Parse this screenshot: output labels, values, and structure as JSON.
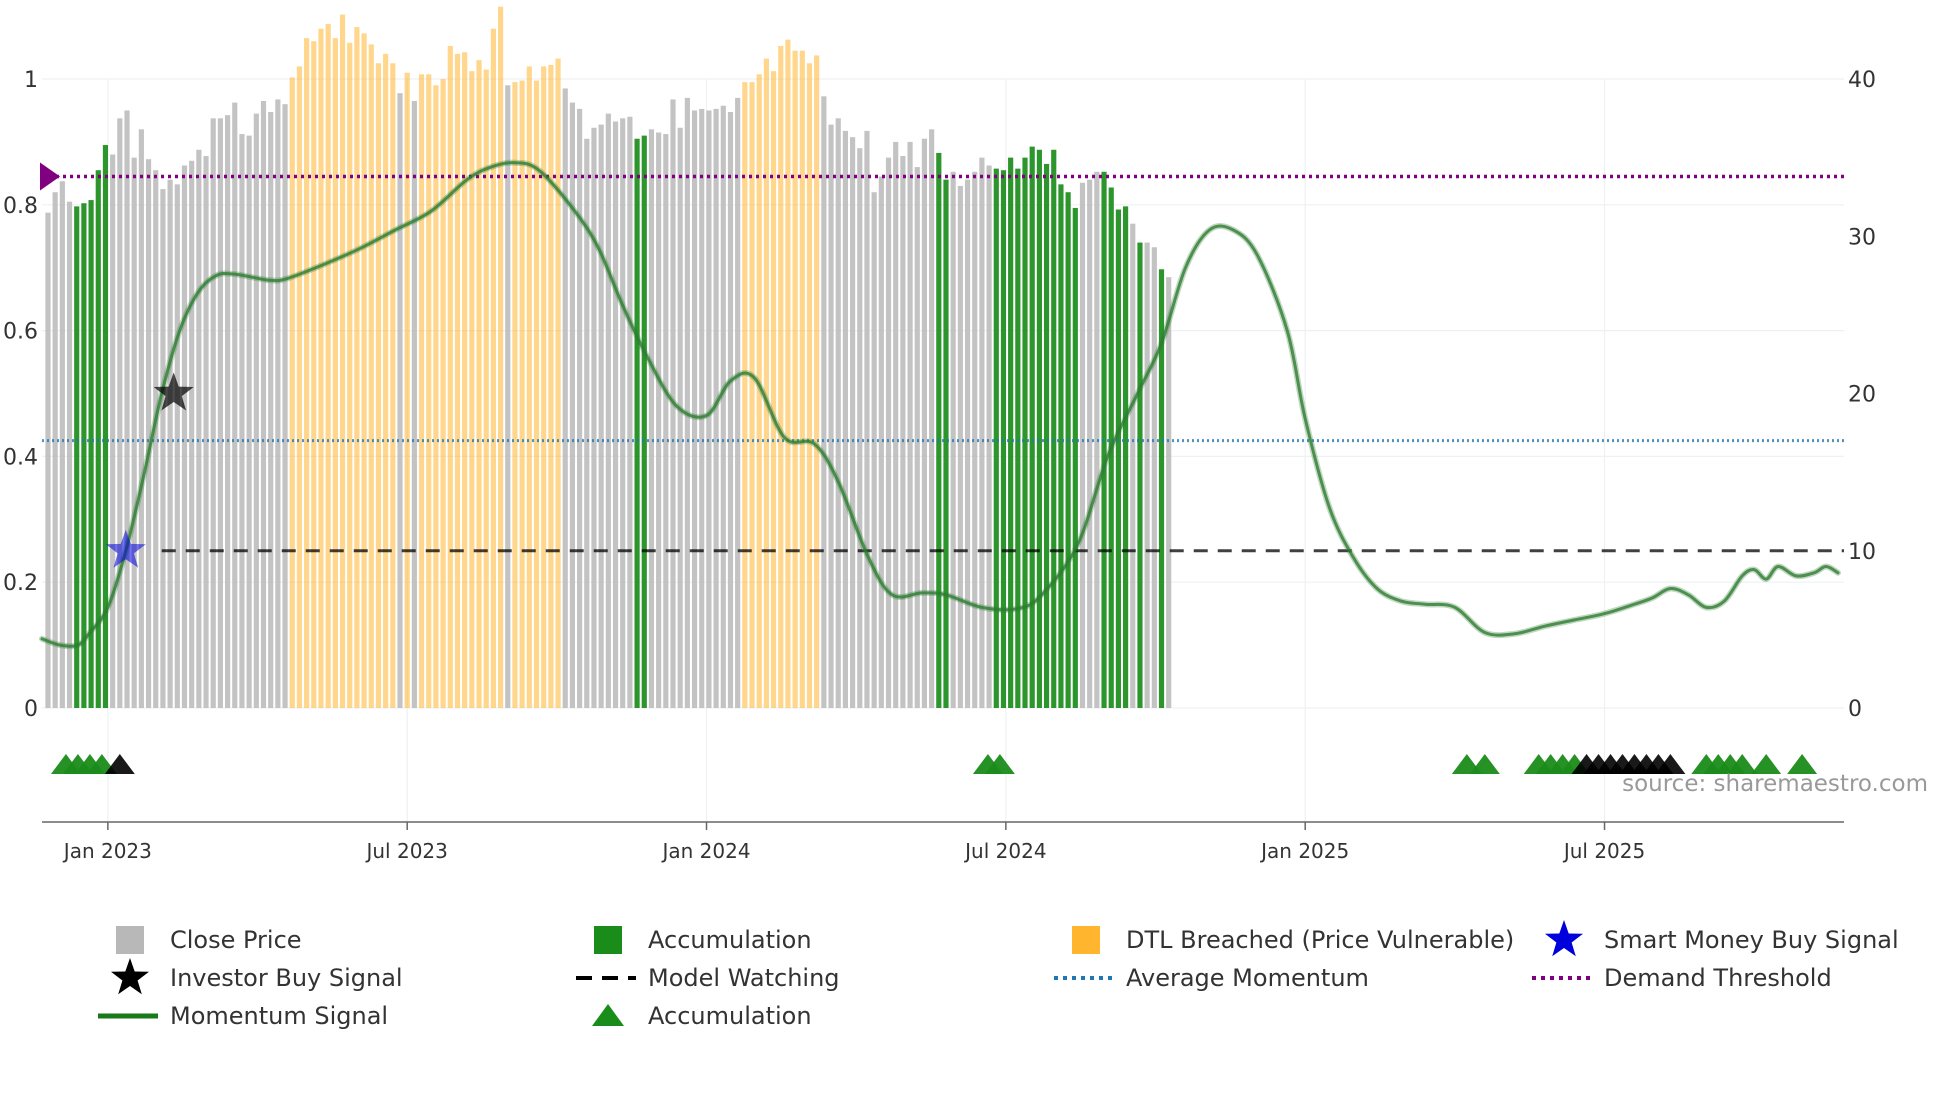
{
  "chart_data": {
    "type": "bar+line",
    "title": "",
    "xlabel": "",
    "ylabel_left": "",
    "ylabel_right": "",
    "ylim_left": [
      0,
      1
    ],
    "ylim_right": [
      0,
      40
    ],
    "yticks_left": [
      "0",
      "0.2",
      "0.4",
      "0.6",
      "0.8",
      "1"
    ],
    "yticks_left_values": [
      0,
      0.2,
      0.4,
      0.6,
      0.8,
      1
    ],
    "yticks_right": [
      "0",
      "10",
      "20",
      "30",
      "40"
    ],
    "yticks_right_values": [
      0,
      10,
      20,
      30,
      40
    ],
    "x_range": [
      2022.89,
      2025.9
    ],
    "xticks": [
      {
        "label": "Jan 2023",
        "t": 2023.0
      },
      {
        "label": "Jul 2023",
        "t": 2023.5
      },
      {
        "label": "Jan 2024",
        "t": 2024.0
      },
      {
        "label": "Jul 2024",
        "t": 2024.5
      },
      {
        "label": "Jan 2025",
        "t": 2025.0
      },
      {
        "label": "Jul 2025",
        "t": 2025.5
      }
    ],
    "colors": {
      "close_price": "#b8b8b8",
      "accumulation": "#1a8c1a",
      "dtl_breached": "#ffb52e",
      "momentum": "#2e7d32",
      "investor_buy": "#000000",
      "smart_money": "#0000dd",
      "average_momentum": "#1f77b4",
      "demand_threshold": "#800080",
      "model_watching": "#000000"
    },
    "bar_start": 2022.9,
    "bar_step": 0.012,
    "close_price_bars": [
      {
        "v": 31.5,
        "s": "g"
      },
      {
        "v": 32.8,
        "s": "g"
      },
      {
        "v": 33.5,
        "s": "g"
      },
      {
        "v": 32.2,
        "s": "g"
      },
      {
        "v": 31.9,
        "s": "a"
      },
      {
        "v": 32.1,
        "s": "a"
      },
      {
        "v": 32.3,
        "s": "a"
      },
      {
        "v": 34.2,
        "s": "a"
      },
      {
        "v": 35.8,
        "s": "a"
      },
      {
        "v": 35.2,
        "s": "g"
      },
      {
        "v": 37.5,
        "s": "g"
      },
      {
        "v": 38.0,
        "s": "g"
      },
      {
        "v": 35.0,
        "s": "g"
      },
      {
        "v": 36.8,
        "s": "g"
      },
      {
        "v": 34.9,
        "s": "g"
      },
      {
        "v": 34.2,
        "s": "g"
      },
      {
        "v": 33.0,
        "s": "g"
      },
      {
        "v": 33.6,
        "s": "g"
      },
      {
        "v": 33.3,
        "s": "g"
      },
      {
        "v": 34.5,
        "s": "g"
      },
      {
        "v": 34.8,
        "s": "g"
      },
      {
        "v": 35.5,
        "s": "g"
      },
      {
        "v": 35.1,
        "s": "g"
      },
      {
        "v": 37.5,
        "s": "g"
      },
      {
        "v": 37.5,
        "s": "g"
      },
      {
        "v": 37.7,
        "s": "g"
      },
      {
        "v": 38.5,
        "s": "g"
      },
      {
        "v": 36.5,
        "s": "g"
      },
      {
        "v": 36.4,
        "s": "g"
      },
      {
        "v": 37.8,
        "s": "g"
      },
      {
        "v": 38.6,
        "s": "g"
      },
      {
        "v": 37.9,
        "s": "g"
      },
      {
        "v": 38.7,
        "s": "g"
      },
      {
        "v": 38.4,
        "s": "g"
      },
      {
        "v": 40.1,
        "s": "o"
      },
      {
        "v": 40.8,
        "s": "o"
      },
      {
        "v": 42.6,
        "s": "o"
      },
      {
        "v": 42.4,
        "s": "o"
      },
      {
        "v": 43.2,
        "s": "o"
      },
      {
        "v": 43.5,
        "s": "o"
      },
      {
        "v": 42.6,
        "s": "o"
      },
      {
        "v": 44.1,
        "s": "o"
      },
      {
        "v": 42.3,
        "s": "o"
      },
      {
        "v": 43.3,
        "s": "o"
      },
      {
        "v": 42.9,
        "s": "o"
      },
      {
        "v": 42.2,
        "s": "o"
      },
      {
        "v": 41.0,
        "s": "o"
      },
      {
        "v": 41.6,
        "s": "o"
      },
      {
        "v": 41.0,
        "s": "o"
      },
      {
        "v": 39.1,
        "s": "g"
      },
      {
        "v": 40.4,
        "s": "o"
      },
      {
        "v": 38.6,
        "s": "g"
      },
      {
        "v": 40.3,
        "s": "o"
      },
      {
        "v": 40.3,
        "s": "o"
      },
      {
        "v": 39.6,
        "s": "o"
      },
      {
        "v": 40.0,
        "s": "o"
      },
      {
        "v": 42.1,
        "s": "o"
      },
      {
        "v": 41.6,
        "s": "o"
      },
      {
        "v": 41.7,
        "s": "o"
      },
      {
        "v": 40.5,
        "s": "o"
      },
      {
        "v": 41.2,
        "s": "o"
      },
      {
        "v": 40.6,
        "s": "o"
      },
      {
        "v": 43.2,
        "s": "o"
      },
      {
        "v": 44.6,
        "s": "o"
      },
      {
        "v": 39.6,
        "s": "g"
      },
      {
        "v": 39.8,
        "s": "o"
      },
      {
        "v": 39.9,
        "s": "o"
      },
      {
        "v": 40.8,
        "s": "o"
      },
      {
        "v": 39.9,
        "s": "o"
      },
      {
        "v": 40.8,
        "s": "o"
      },
      {
        "v": 40.9,
        "s": "o"
      },
      {
        "v": 41.3,
        "s": "o"
      },
      {
        "v": 39.4,
        "s": "g"
      },
      {
        "v": 38.5,
        "s": "g"
      },
      {
        "v": 38.1,
        "s": "g"
      },
      {
        "v": 36.2,
        "s": "g"
      },
      {
        "v": 36.9,
        "s": "g"
      },
      {
        "v": 37.1,
        "s": "g"
      },
      {
        "v": 37.8,
        "s": "g"
      },
      {
        "v": 37.3,
        "s": "g"
      },
      {
        "v": 37.5,
        "s": "g"
      },
      {
        "v": 37.6,
        "s": "g"
      },
      {
        "v": 36.2,
        "s": "a"
      },
      {
        "v": 36.4,
        "s": "a"
      },
      {
        "v": 36.8,
        "s": "g"
      },
      {
        "v": 36.6,
        "s": "g"
      },
      {
        "v": 36.5,
        "s": "g"
      },
      {
        "v": 38.7,
        "s": "g"
      },
      {
        "v": 36.9,
        "s": "g"
      },
      {
        "v": 38.8,
        "s": "g"
      },
      {
        "v": 38.0,
        "s": "g"
      },
      {
        "v": 38.1,
        "s": "g"
      },
      {
        "v": 38.0,
        "s": "g"
      },
      {
        "v": 38.1,
        "s": "g"
      },
      {
        "v": 38.3,
        "s": "g"
      },
      {
        "v": 37.9,
        "s": "g"
      },
      {
        "v": 38.8,
        "s": "g"
      },
      {
        "v": 39.8,
        "s": "o"
      },
      {
        "v": 39.8,
        "s": "o"
      },
      {
        "v": 40.3,
        "s": "o"
      },
      {
        "v": 41.3,
        "s": "o"
      },
      {
        "v": 40.5,
        "s": "o"
      },
      {
        "v": 42.1,
        "s": "o"
      },
      {
        "v": 42.5,
        "s": "o"
      },
      {
        "v": 41.8,
        "s": "o"
      },
      {
        "v": 41.8,
        "s": "o"
      },
      {
        "v": 41.0,
        "s": "o"
      },
      {
        "v": 41.5,
        "s": "o"
      },
      {
        "v": 38.9,
        "s": "g"
      },
      {
        "v": 37.1,
        "s": "g"
      },
      {
        "v": 37.5,
        "s": "g"
      },
      {
        "v": 36.7,
        "s": "g"
      },
      {
        "v": 36.3,
        "s": "g"
      },
      {
        "v": 35.6,
        "s": "g"
      },
      {
        "v": 36.7,
        "s": "g"
      },
      {
        "v": 32.8,
        "s": "g"
      },
      {
        "v": 33.8,
        "s": "g"
      },
      {
        "v": 35.0,
        "s": "g"
      },
      {
        "v": 36.0,
        "s": "g"
      },
      {
        "v": 35.1,
        "s": "g"
      },
      {
        "v": 36.0,
        "s": "g"
      },
      {
        "v": 34.4,
        "s": "g"
      },
      {
        "v": 36.2,
        "s": "g"
      },
      {
        "v": 36.8,
        "s": "g"
      },
      {
        "v": 35.3,
        "s": "a"
      },
      {
        "v": 33.6,
        "s": "a"
      },
      {
        "v": 34.1,
        "s": "g"
      },
      {
        "v": 33.2,
        "s": "g"
      },
      {
        "v": 33.6,
        "s": "g"
      },
      {
        "v": 34.1,
        "s": "g"
      },
      {
        "v": 35.0,
        "s": "g"
      },
      {
        "v": 34.5,
        "s": "g"
      },
      {
        "v": 34.3,
        "s": "a"
      },
      {
        "v": 34.2,
        "s": "a"
      },
      {
        "v": 35.0,
        "s": "a"
      },
      {
        "v": 34.3,
        "s": "a"
      },
      {
        "v": 35.0,
        "s": "a"
      },
      {
        "v": 35.7,
        "s": "a"
      },
      {
        "v": 35.5,
        "s": "a"
      },
      {
        "v": 34.6,
        "s": "a"
      },
      {
        "v": 35.5,
        "s": "a"
      },
      {
        "v": 33.3,
        "s": "a"
      },
      {
        "v": 32.8,
        "s": "a"
      },
      {
        "v": 31.8,
        "s": "a"
      },
      {
        "v": 33.4,
        "s": "g"
      },
      {
        "v": 33.6,
        "s": "g"
      },
      {
        "v": 34.1,
        "s": "g"
      },
      {
        "v": 34.1,
        "s": "a"
      },
      {
        "v": 33.1,
        "s": "a"
      },
      {
        "v": 31.7,
        "s": "a"
      },
      {
        "v": 31.9,
        "s": "a"
      },
      {
        "v": 30.8,
        "s": "g"
      },
      {
        "v": 29.6,
        "s": "a"
      },
      {
        "v": 29.6,
        "s": "g"
      },
      {
        "v": 29.3,
        "s": "g"
      },
      {
        "v": 27.9,
        "s": "a"
      },
      {
        "v": 27.4,
        "s": "g"
      }
    ],
    "momentum_signal": [
      [
        2022.89,
        0.11
      ],
      [
        2022.92,
        0.1
      ],
      [
        2022.95,
        0.1
      ],
      [
        2022.97,
        0.12
      ],
      [
        2023.0,
        0.16
      ],
      [
        2023.03,
        0.25
      ],
      [
        2023.06,
        0.37
      ],
      [
        2023.09,
        0.5
      ],
      [
        2023.12,
        0.6
      ],
      [
        2023.15,
        0.66
      ],
      [
        2023.18,
        0.687
      ],
      [
        2023.21,
        0.69
      ],
      [
        2023.27,
        0.68
      ],
      [
        2023.3,
        0.683
      ],
      [
        2023.36,
        0.705
      ],
      [
        2023.42,
        0.73
      ],
      [
        2023.48,
        0.76
      ],
      [
        2023.54,
        0.79
      ],
      [
        2023.6,
        0.84
      ],
      [
        2023.64,
        0.86
      ],
      [
        2023.68,
        0.867
      ],
      [
        2023.72,
        0.855
      ],
      [
        2023.78,
        0.79
      ],
      [
        2023.82,
        0.73
      ],
      [
        2023.86,
        0.64
      ],
      [
        2023.9,
        0.56
      ],
      [
        2023.95,
        0.48
      ],
      [
        2024.0,
        0.465
      ],
      [
        2024.04,
        0.52
      ],
      [
        2024.08,
        0.525
      ],
      [
        2024.13,
        0.43
      ],
      [
        2024.18,
        0.42
      ],
      [
        2024.22,
        0.36
      ],
      [
        2024.27,
        0.24
      ],
      [
        2024.31,
        0.18
      ],
      [
        2024.36,
        0.183
      ],
      [
        2024.4,
        0.18
      ],
      [
        2024.46,
        0.16
      ],
      [
        2024.52,
        0.158
      ],
      [
        2024.56,
        0.18
      ],
      [
        2024.62,
        0.26
      ],
      [
        2024.67,
        0.4
      ],
      [
        2024.72,
        0.5
      ],
      [
        2024.76,
        0.58
      ],
      [
        2024.8,
        0.7
      ],
      [
        2024.84,
        0.76
      ],
      [
        2024.88,
        0.76
      ],
      [
        2024.92,
        0.72
      ],
      [
        2024.97,
        0.6
      ],
      [
        2025.0,
        0.46
      ],
      [
        2025.04,
        0.32
      ],
      [
        2025.08,
        0.24
      ],
      [
        2025.12,
        0.19
      ],
      [
        2025.16,
        0.17
      ],
      [
        2025.2,
        0.165
      ],
      [
        2025.25,
        0.16
      ],
      [
        2025.3,
        0.12
      ],
      [
        2025.35,
        0.118
      ],
      [
        2025.4,
        0.13
      ],
      [
        2025.45,
        0.14
      ],
      [
        2025.5,
        0.15
      ],
      [
        2025.55,
        0.165
      ],
      [
        2025.58,
        0.175
      ],
      [
        2025.61,
        0.19
      ],
      [
        2025.64,
        0.18
      ],
      [
        2025.67,
        0.16
      ],
      [
        2025.7,
        0.17
      ],
      [
        2025.73,
        0.21
      ],
      [
        2025.75,
        0.22
      ],
      [
        2025.77,
        0.205
      ],
      [
        2025.79,
        0.225
      ],
      [
        2025.82,
        0.21
      ],
      [
        2025.85,
        0.215
      ],
      [
        2025.87,
        0.225
      ],
      [
        2025.89,
        0.215
      ]
    ],
    "lines": {
      "demand_threshold": 0.845,
      "average_momentum": 0.425,
      "model_watching": 0.25,
      "model_watching_start": 2023.09
    },
    "investor_buy_signal": {
      "t": 2023.11,
      "v": 0.5
    },
    "smart_money_buy_signal": {
      "t": 2023.03,
      "v": 0.25
    },
    "accumulation_markers": [
      {
        "t": 2022.93,
        "c": "g"
      },
      {
        "t": 2022.95,
        "c": "g"
      },
      {
        "t": 2022.97,
        "c": "g"
      },
      {
        "t": 2022.99,
        "c": "g"
      },
      {
        "t": 2023.02,
        "c": "k"
      },
      {
        "t": 2024.47,
        "c": "g"
      },
      {
        "t": 2024.49,
        "c": "g"
      },
      {
        "t": 2025.27,
        "c": "g"
      },
      {
        "t": 2025.3,
        "c": "g"
      },
      {
        "t": 2025.39,
        "c": "g"
      },
      {
        "t": 2025.41,
        "c": "g"
      },
      {
        "t": 2025.43,
        "c": "g"
      },
      {
        "t": 2025.45,
        "c": "g"
      },
      {
        "t": 2025.47,
        "c": "k"
      },
      {
        "t": 2025.49,
        "c": "k"
      },
      {
        "t": 2025.51,
        "c": "k"
      },
      {
        "t": 2025.53,
        "c": "k"
      },
      {
        "t": 2025.55,
        "c": "k"
      },
      {
        "t": 2025.57,
        "c": "k"
      },
      {
        "t": 2025.59,
        "c": "k"
      },
      {
        "t": 2025.61,
        "c": "k"
      },
      {
        "t": 2025.67,
        "c": "g"
      },
      {
        "t": 2025.69,
        "c": "g"
      },
      {
        "t": 2025.71,
        "c": "g"
      },
      {
        "t": 2025.73,
        "c": "g"
      },
      {
        "t": 2025.77,
        "c": "g"
      },
      {
        "t": 2025.83,
        "c": "g"
      }
    ],
    "source_text": "source: sharemaestro.com",
    "legend": [
      {
        "label": "Close Price",
        "sym": "square-gray"
      },
      {
        "label": "Accumulation",
        "sym": "square-green"
      },
      {
        "label": "DTL Breached (Price Vulnerable)",
        "sym": "square-orange"
      },
      {
        "label": "Smart Money Buy Signal",
        "sym": "star-blue"
      },
      {
        "label": "Investor Buy Signal",
        "sym": "star-black"
      },
      {
        "label": "Model Watching",
        "sym": "dash-black"
      },
      {
        "label": "Average Momentum",
        "sym": "dot-blue"
      },
      {
        "label": "Demand Threshold",
        "sym": "dot-purple"
      },
      {
        "label": "Momentum Signal",
        "sym": "line-green"
      },
      {
        "label": "Accumulation",
        "sym": "triangle-green"
      }
    ]
  }
}
